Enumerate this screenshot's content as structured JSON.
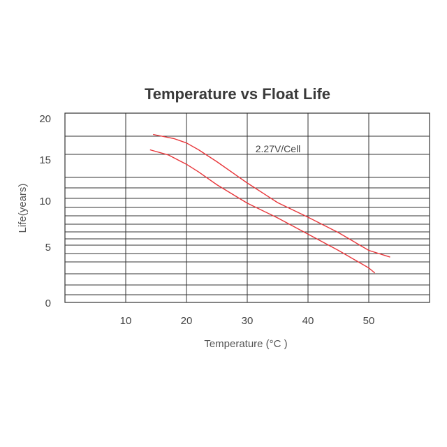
{
  "chart_data": {
    "type": "line",
    "title": "Temperature vs Float Life",
    "xlabel": "Temperature (°C )",
    "ylabel": "Life(years)",
    "xlim": [
      0,
      60
    ],
    "ylim": [
      0,
      20
    ],
    "x_ticks": [
      10,
      20,
      30,
      40,
      50
    ],
    "x_tick_labels": [
      "10",
      "20",
      "30",
      "40",
      "50"
    ],
    "y_tick_labels": [
      "20",
      "15",
      "10",
      "5",
      "0"
    ],
    "grid": true,
    "annotation": "2.27V/Cell",
    "colors": {
      "series": "#e8363a",
      "grid": "#333333",
      "text": "#444444"
    },
    "series": [
      {
        "x": [
          14.5,
          18,
          20,
          22,
          25,
          30,
          35,
          40,
          45,
          50,
          53.5
        ],
        "y": [
          17.5,
          17,
          16.5,
          15.7,
          14.3,
          11.8,
          9.2,
          6.7,
          4.5,
          2.5,
          1.9
        ]
      },
      {
        "x": [
          14,
          17,
          20,
          22,
          25,
          30,
          35,
          40,
          45,
          50,
          51
        ],
        "y": [
          15.7,
          15.1,
          14,
          13.1,
          11.6,
          9.1,
          6.6,
          4.3,
          2.5,
          1.1,
          0.8
        ]
      }
    ]
  }
}
